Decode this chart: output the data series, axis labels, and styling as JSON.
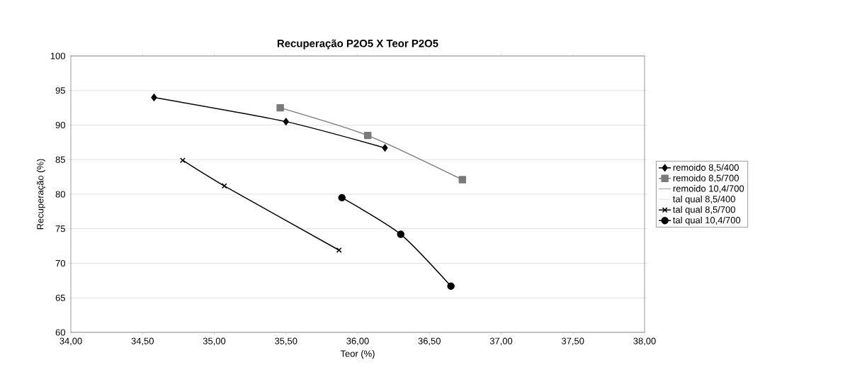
{
  "chart_data": {
    "type": "line",
    "title": "Recuperação P2O5 X Teor P2O5",
    "xlabel": "Teor (%)",
    "ylabel": "Recuperação (%)",
    "xlim": [
      34,
      38
    ],
    "ylim": [
      60,
      100
    ],
    "xticks": [
      {
        "value": 34,
        "label": "34,00"
      },
      {
        "value": 34.5,
        "label": "34,50"
      },
      {
        "value": 35,
        "label": "35,00"
      },
      {
        "value": 35.5,
        "label": "35,50"
      },
      {
        "value": 36,
        "label": "36,00"
      },
      {
        "value": 36.5,
        "label": "36,50"
      },
      {
        "value": 37,
        "label": "37,00"
      },
      {
        "value": 37.5,
        "label": "37,50"
      },
      {
        "value": 38,
        "label": "38,00"
      }
    ],
    "yticks": [
      60,
      65,
      70,
      75,
      80,
      85,
      90,
      95,
      100
    ],
    "grid": "y",
    "legend": "right",
    "series": [
      {
        "name": "remoido 8,5/400",
        "color": "#000000",
        "marker": "diamond",
        "x": [
          34.58,
          35.5,
          36.19
        ],
        "values": [
          94.0,
          90.5,
          86.7
        ]
      },
      {
        "name": "remoido 8,5/700",
        "color": "#7a7a7a",
        "marker": "square",
        "x": [
          35.46,
          36.07,
          36.73
        ],
        "values": [
          92.5,
          88.5,
          82.1
        ]
      },
      {
        "name": "remoido 10,4/700",
        "marker": "none"
      },
      {
        "name": "tal qual 8,5/400",
        "color": "#e8e8e8",
        "marker": "none"
      },
      {
        "name": "tal qual 8,5/700",
        "color": "#000000",
        "marker": "cross",
        "x": [
          34.78,
          35.07,
          35.87
        ],
        "values": [
          84.9,
          81.2,
          71.9
        ]
      },
      {
        "name": "tal qual 10,4/700",
        "color": "#000000",
        "marker": "circle",
        "x": [
          35.89,
          36.3,
          36.65
        ],
        "values": [
          79.5,
          74.2,
          66.7
        ]
      }
    ]
  }
}
